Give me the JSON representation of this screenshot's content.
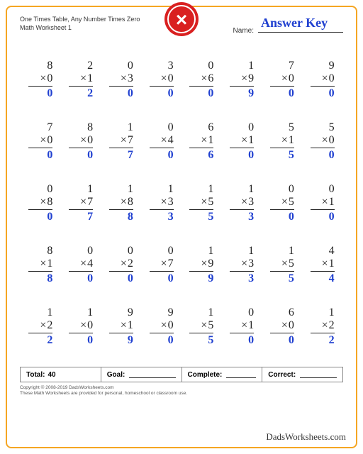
{
  "header": {
    "title_line1": "One Times Table, Any Number Times Zero",
    "title_line2": "Math Worksheet 1",
    "name_label": "Name:",
    "answer_key": "Answer Key"
  },
  "badge": {
    "bg": "#d92020",
    "ring": "#fff",
    "symbol": "×"
  },
  "problems": [
    [
      {
        "a": 8,
        "b": 0,
        "r": 0
      },
      {
        "a": 2,
        "b": 1,
        "r": 2
      },
      {
        "a": 0,
        "b": 3,
        "r": 0
      },
      {
        "a": 3,
        "b": 0,
        "r": 0
      },
      {
        "a": 0,
        "b": 6,
        "r": 0
      },
      {
        "a": 1,
        "b": 9,
        "r": 9
      },
      {
        "a": 7,
        "b": 0,
        "r": 0
      },
      {
        "a": 9,
        "b": 0,
        "r": 0
      }
    ],
    [
      {
        "a": 7,
        "b": 0,
        "r": 0
      },
      {
        "a": 8,
        "b": 0,
        "r": 0
      },
      {
        "a": 1,
        "b": 7,
        "r": 7
      },
      {
        "a": 0,
        "b": 4,
        "r": 0
      },
      {
        "a": 6,
        "b": 1,
        "r": 6
      },
      {
        "a": 0,
        "b": 1,
        "r": 0
      },
      {
        "a": 5,
        "b": 1,
        "r": 5
      },
      {
        "a": 5,
        "b": 0,
        "r": 0
      }
    ],
    [
      {
        "a": 0,
        "b": 8,
        "r": 0
      },
      {
        "a": 1,
        "b": 7,
        "r": 7
      },
      {
        "a": 1,
        "b": 8,
        "r": 8
      },
      {
        "a": 1,
        "b": 3,
        "r": 3
      },
      {
        "a": 1,
        "b": 5,
        "r": 5
      },
      {
        "a": 1,
        "b": 3,
        "r": 3
      },
      {
        "a": 0,
        "b": 5,
        "r": 0
      },
      {
        "a": 0,
        "b": 1,
        "r": 0
      }
    ],
    [
      {
        "a": 8,
        "b": 1,
        "r": 8
      },
      {
        "a": 0,
        "b": 4,
        "r": 0
      },
      {
        "a": 0,
        "b": 2,
        "r": 0
      },
      {
        "a": 0,
        "b": 7,
        "r": 0
      },
      {
        "a": 1,
        "b": 9,
        "r": 9
      },
      {
        "a": 1,
        "b": 3,
        "r": 3
      },
      {
        "a": 1,
        "b": 5,
        "r": 5
      },
      {
        "a": 4,
        "b": 1,
        "r": 4
      }
    ],
    [
      {
        "a": 1,
        "b": 2,
        "r": 2
      },
      {
        "a": 1,
        "b": 0,
        "r": 0
      },
      {
        "a": 9,
        "b": 1,
        "r": 9
      },
      {
        "a": 9,
        "b": 0,
        "r": 0
      },
      {
        "a": 1,
        "b": 5,
        "r": 5
      },
      {
        "a": 0,
        "b": 1,
        "r": 0
      },
      {
        "a": 6,
        "b": 0,
        "r": 0
      },
      {
        "a": 1,
        "b": 2,
        "r": 2
      }
    ]
  ],
  "footer": {
    "total_label": "Total:",
    "total_value": "40",
    "goal_label": "Goal:",
    "complete_label": "Complete:",
    "correct_label": "Correct:"
  },
  "copyright": {
    "line1": "Copyright © 2008-2019 DadsWorksheets.com",
    "line2": "These Math Worksheets are provided for personal, homeschool or classroom use."
  },
  "logo": "DadsWorksheets.com"
}
